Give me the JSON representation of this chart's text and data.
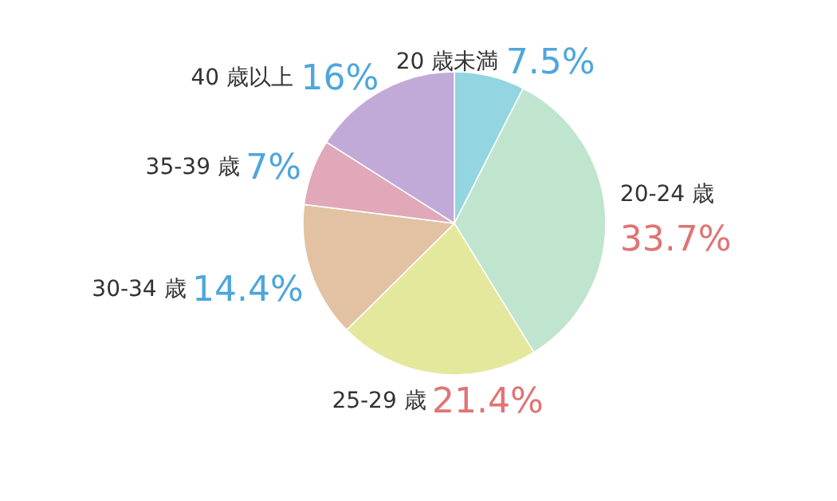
{
  "chart_data": {
    "type": "pie",
    "categories": [
      "20 歳未満",
      "20-24 歳",
      "25-29 歳",
      "30-34 歳",
      "35-39 歳",
      "40 歳以上"
    ],
    "values": [
      7.5,
      33.7,
      21.4,
      14.4,
      7,
      16
    ],
    "colors": [
      "#93d5e0",
      "#bfe5cf",
      "#e4e89c",
      "#e2c2a2",
      "#e0a8b8",
      "#c2aad8"
    ],
    "value_labels": [
      "7.5%",
      "33.7%",
      "21.4%",
      "14.4%",
      "7%",
      "16%"
    ]
  }
}
